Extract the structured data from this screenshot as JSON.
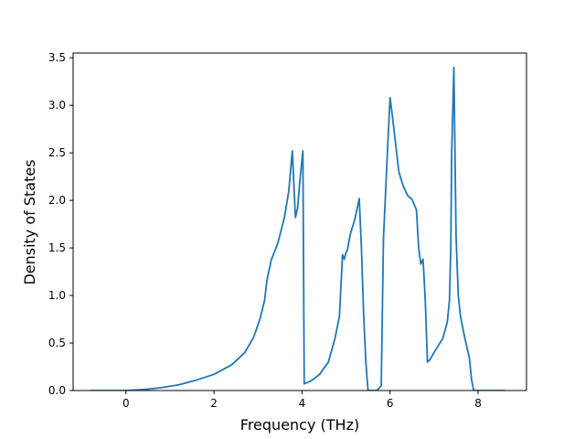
{
  "chart_data": {
    "type": "line",
    "title": "",
    "xlabel": "Frequency (THz)",
    "ylabel": "Density of States",
    "xlim": [
      -1.2,
      9.1
    ],
    "ylim": [
      0,
      3.55
    ],
    "xticks": [
      0,
      2,
      4,
      6,
      8
    ],
    "yticks": [
      0.0,
      0.5,
      1.0,
      1.5,
      2.0,
      2.5,
      3.0,
      3.5
    ],
    "grid": false,
    "legend": "none",
    "series": [
      {
        "color": "#1f77b4",
        "x": [
          -0.8,
          -0.4,
          0.0,
          0.4,
          0.8,
          1.2,
          1.6,
          2.0,
          2.4,
          2.7,
          2.9,
          3.05,
          3.15,
          3.2,
          3.3,
          3.45,
          3.6,
          3.7,
          3.78,
          3.85,
          3.9,
          3.95,
          4.02,
          4.05,
          4.2,
          4.4,
          4.6,
          4.75,
          4.85,
          4.92,
          4.96,
          5.0,
          5.03,
          5.1,
          5.2,
          5.3,
          5.35,
          5.4,
          5.45,
          5.5,
          5.55,
          5.6,
          5.7,
          5.8,
          5.85,
          5.9,
          5.95,
          6.0,
          6.05,
          6.1,
          6.2,
          6.3,
          6.4,
          6.5,
          6.6,
          6.65,
          6.7,
          6.75,
          6.8,
          6.85,
          6.9,
          7.0,
          7.2,
          7.3,
          7.35,
          7.38,
          7.4,
          7.45,
          7.5,
          7.55,
          7.6,
          7.7,
          7.8,
          7.85,
          7.9,
          8.0,
          8.6
        ],
        "y": [
          0.0,
          0.0,
          0.0,
          0.01,
          0.03,
          0.06,
          0.11,
          0.17,
          0.27,
          0.4,
          0.56,
          0.76,
          0.95,
          1.15,
          1.37,
          1.55,
          1.82,
          2.1,
          2.52,
          1.82,
          1.92,
          2.2,
          2.52,
          0.07,
          0.1,
          0.17,
          0.3,
          0.55,
          0.78,
          1.43,
          1.38,
          1.45,
          1.48,
          1.65,
          1.8,
          2.02,
          1.5,
          0.8,
          0.3,
          0.0,
          0.0,
          0.0,
          0.0,
          0.05,
          1.6,
          2.1,
          2.6,
          3.08,
          2.9,
          2.7,
          2.3,
          2.15,
          2.05,
          2.01,
          1.9,
          1.5,
          1.33,
          1.38,
          0.95,
          0.3,
          0.32,
          0.4,
          0.55,
          0.72,
          0.95,
          1.5,
          2.5,
          3.4,
          1.62,
          1.0,
          0.78,
          0.55,
          0.35,
          0.12,
          0.0,
          0.0,
          0.0
        ]
      }
    ]
  }
}
